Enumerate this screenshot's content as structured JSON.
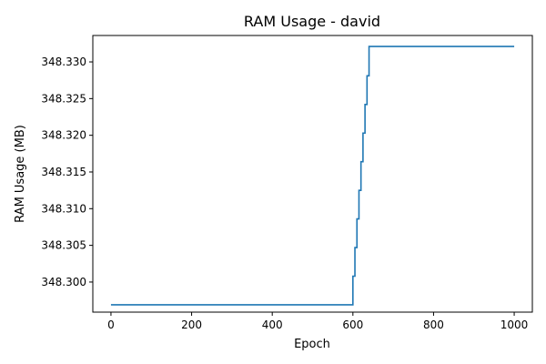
{
  "chart_data": {
    "type": "line",
    "title": "RAM Usage - david",
    "xlabel": "Epoch",
    "ylabel": "RAM Usage (MB)",
    "xlim": [
      -45,
      1045
    ],
    "ylim": [
      348.2959,
      348.3336
    ],
    "x_ticks": [
      0,
      200,
      400,
      600,
      800,
      1000
    ],
    "x_tick_labels": [
      "0",
      "200",
      "400",
      "600",
      "800",
      "1000"
    ],
    "y_ticks": [
      348.3,
      348.305,
      348.31,
      348.315,
      348.32,
      348.325,
      348.33
    ],
    "y_tick_labels": [
      "348.300",
      "348.305",
      "348.310",
      "348.315",
      "348.320",
      "348.325",
      "348.330"
    ],
    "grid": false,
    "series": [
      {
        "color": "#1f77b4",
        "step": "post",
        "points": [
          [
            0,
            348.2969
          ],
          [
            600,
            348.2969
          ],
          [
            600,
            348.3008
          ],
          [
            605,
            348.3008
          ],
          [
            605,
            348.3047
          ],
          [
            610,
            348.3047
          ],
          [
            610,
            348.3086
          ],
          [
            615,
            348.3086
          ],
          [
            615,
            348.3125
          ],
          [
            620,
            348.3125
          ],
          [
            620,
            348.3164
          ],
          [
            625,
            348.3164
          ],
          [
            625,
            348.3203
          ],
          [
            630,
            348.3203
          ],
          [
            630,
            348.3242
          ],
          [
            635,
            348.3242
          ],
          [
            635,
            348.3281
          ],
          [
            640,
            348.3281
          ],
          [
            640,
            348.3321
          ],
          [
            1000,
            348.3321
          ]
        ]
      }
    ]
  }
}
